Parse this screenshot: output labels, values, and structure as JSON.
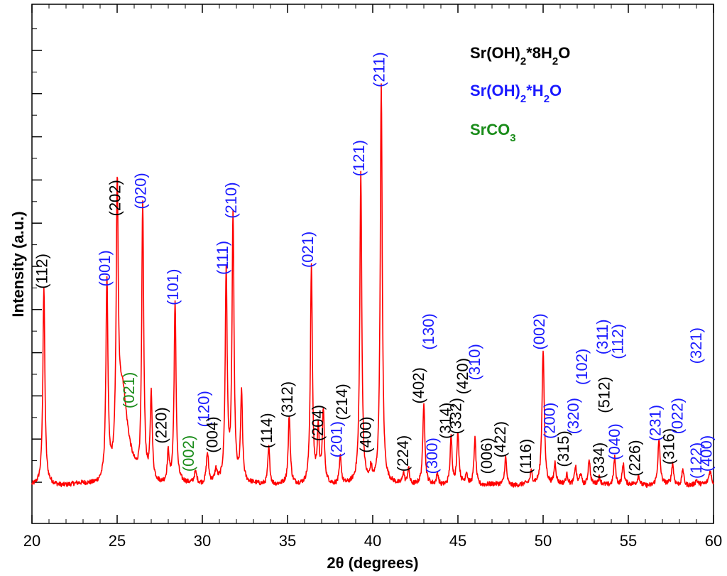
{
  "chart_data": {
    "type": "line",
    "xlabel": "2θ (degrees)",
    "ylabel": "Intensity (a.u.)",
    "xlim": [
      20,
      60
    ],
    "ylim": [
      0,
      1000
    ],
    "x_ticks": [
      20,
      25,
      30,
      35,
      40,
      45,
      50,
      55,
      60
    ],
    "line_color": "#ff0000",
    "phase_colors": {
      "a": "#000000",
      "b": "#1a1aff",
      "c": "#1a8c1a"
    },
    "legend": [
      {
        "phase": "a",
        "parts": [
          [
            "Sr(OH)",
            ""
          ],
          [
            "2",
            "sub"
          ],
          [
            "*8H",
            ""
          ],
          [
            "2",
            "sub"
          ],
          [
            "O",
            ""
          ]
        ]
      },
      {
        "phase": "b",
        "parts": [
          [
            "Sr(OH)",
            ""
          ],
          [
            "2",
            "sub"
          ],
          [
            "*H",
            ""
          ],
          [
            "2",
            "sub"
          ],
          [
            "O",
            ""
          ]
        ]
      },
      {
        "phase": "c",
        "parts": [
          [
            "SrCO",
            ""
          ],
          [
            "3",
            "sub"
          ]
        ]
      }
    ],
    "peaks": [
      [
        20.7,
        420,
        0.07
      ],
      [
        24.4,
        425,
        0.07
      ],
      [
        25.0,
        575,
        0.07
      ],
      [
        25.3,
        140,
        0.3
      ],
      [
        26.5,
        590,
        0.07
      ],
      [
        27.0,
        185,
        0.07
      ],
      [
        28.0,
        65,
        0.07
      ],
      [
        28.4,
        385,
        0.07
      ],
      [
        29.6,
        25,
        0.1
      ],
      [
        30.3,
        65,
        0.08
      ],
      [
        30.8,
        25,
        0.08
      ],
      [
        31.4,
        450,
        0.07
      ],
      [
        31.8,
        570,
        0.07
      ],
      [
        32.3,
        190,
        0.07
      ],
      [
        33.9,
        80,
        0.07
      ],
      [
        35.1,
        145,
        0.07
      ],
      [
        36.4,
        465,
        0.07
      ],
      [
        36.8,
        110,
        0.07
      ],
      [
        37.1,
        155,
        0.07
      ],
      [
        38.1,
        60,
        0.07
      ],
      [
        39.3,
        660,
        0.07
      ],
      [
        39.9,
        30,
        0.07
      ],
      [
        40.5,
        850,
        0.07
      ],
      [
        41.8,
        25,
        0.07
      ],
      [
        42.1,
        35,
        0.07
      ],
      [
        43.0,
        175,
        0.07
      ],
      [
        43.8,
        25,
        0.07
      ],
      [
        44.6,
        100,
        0.07
      ],
      [
        45.0,
        110,
        0.07
      ],
      [
        45.5,
        25,
        0.07
      ],
      [
        46.0,
        100,
        0.07
      ],
      [
        47.8,
        60,
        0.07
      ],
      [
        49.3,
        25,
        0.07
      ],
      [
        50.0,
        290,
        0.08
      ],
      [
        50.7,
        45,
        0.07
      ],
      [
        51.4,
        20,
        0.07
      ],
      [
        51.9,
        40,
        0.07
      ],
      [
        52.2,
        25,
        0.07
      ],
      [
        52.7,
        55,
        0.07
      ],
      [
        53.3,
        15,
        0.07
      ],
      [
        54.2,
        60,
        0.07
      ],
      [
        54.7,
        45,
        0.07
      ],
      [
        55.6,
        20,
        0.07
      ],
      [
        56.8,
        95,
        0.08
      ],
      [
        57.6,
        45,
        0.07
      ],
      [
        58.2,
        35,
        0.07
      ],
      [
        59.0,
        10,
        0.07
      ],
      [
        59.8,
        30,
        0.1
      ]
    ],
    "labels": [
      {
        "text": "(112)",
        "x": 20.6,
        "y": 420,
        "phase": "a"
      },
      {
        "text": "(001)",
        "x": 24.3,
        "y": 425,
        "phase": "b"
      },
      {
        "text": "(202)",
        "x": 24.9,
        "y": 575,
        "phase": "a"
      },
      {
        "text": "(021)",
        "x": 25.7,
        "y": 165,
        "phase": "c"
      },
      {
        "text": "(020)",
        "x": 26.4,
        "y": 590,
        "phase": "b"
      },
      {
        "text": "(220)",
        "x": 27.6,
        "y": 90,
        "phase": "a"
      },
      {
        "text": "(101)",
        "x": 28.3,
        "y": 385,
        "phase": "b"
      },
      {
        "text": "(002)",
        "x": 29.2,
        "y": 30,
        "phase": "c"
      },
      {
        "text": "(120)",
        "x": 30.1,
        "y": 125,
        "phase": "b"
      },
      {
        "text": "(004)",
        "x": 30.6,
        "y": 70,
        "phase": "a"
      },
      {
        "text": "(111)",
        "x": 31.2,
        "y": 450,
        "phase": "b"
      },
      {
        "text": "(210)",
        "x": 31.7,
        "y": 570,
        "phase": "b"
      },
      {
        "text": "(114)",
        "x": 33.8,
        "y": 80,
        "phase": "a"
      },
      {
        "text": "(312)",
        "x": 35.0,
        "y": 145,
        "phase": "a"
      },
      {
        "text": "(021)",
        "x": 36.2,
        "y": 465,
        "phase": "b"
      },
      {
        "text": "(204)",
        "x": 36.8,
        "y": 95,
        "phase": "a"
      },
      {
        "text": "(201)",
        "x": 37.9,
        "y": 60,
        "phase": "b"
      },
      {
        "text": "(214)",
        "x": 38.2,
        "y": 140,
        "phase": "a"
      },
      {
        "text": "(121)",
        "x": 39.2,
        "y": 660,
        "phase": "b"
      },
      {
        "text": "(400)",
        "x": 39.6,
        "y": 70,
        "phase": "a"
      },
      {
        "text": "(211)",
        "x": 40.4,
        "y": 850,
        "phase": "b"
      },
      {
        "text": "(224)",
        "x": 41.8,
        "y": 30,
        "phase": "a"
      },
      {
        "text": "(402)",
        "x": 42.7,
        "y": 175,
        "phase": "a"
      },
      {
        "text": "(300)",
        "x": 43.5,
        "y": 25,
        "phase": "b"
      },
      {
        "text": "(130)",
        "x": 43.3,
        "y": 290,
        "phase": "b"
      },
      {
        "text": "(314)",
        "x": 44.3,
        "y": 100,
        "phase": "a"
      },
      {
        "text": "(332)",
        "x": 44.9,
        "y": 110,
        "phase": "a"
      },
      {
        "text": "(420)",
        "x": 45.3,
        "y": 195,
        "phase": "a"
      },
      {
        "text": "(310)",
        "x": 46.0,
        "y": 225,
        "phase": "b"
      },
      {
        "text": "(006)",
        "x": 46.7,
        "y": 25,
        "phase": "a"
      },
      {
        "text": "(422)",
        "x": 47.5,
        "y": 60,
        "phase": "a"
      },
      {
        "text": "(116)",
        "x": 49.0,
        "y": 25,
        "phase": "a"
      },
      {
        "text": "(002)",
        "x": 49.8,
        "y": 290,
        "phase": "b"
      },
      {
        "text": "(200)",
        "x": 50.4,
        "y": 100,
        "phase": "b"
      },
      {
        "text": "(315)",
        "x": 51.2,
        "y": 40,
        "phase": "a"
      },
      {
        "text": "(320)",
        "x": 51.8,
        "y": 110,
        "phase": "b"
      },
      {
        "text": "(102)",
        "x": 52.3,
        "y": 215,
        "phase": "b"
      },
      {
        "text": "(334)",
        "x": 53.3,
        "y": 15,
        "phase": "a"
      },
      {
        "text": "(512)",
        "x": 53.6,
        "y": 155,
        "phase": "a"
      },
      {
        "text": "(311)",
        "x": 53.5,
        "y": 280,
        "phase": "b"
      },
      {
        "text": "(040)",
        "x": 54.2,
        "y": 55,
        "phase": "b"
      },
      {
        "text": "(112)",
        "x": 54.4,
        "y": 270,
        "phase": "b"
      },
      {
        "text": "(226)",
        "x": 55.4,
        "y": 20,
        "phase": "a"
      },
      {
        "text": "(231)",
        "x": 56.6,
        "y": 95,
        "phase": "b"
      },
      {
        "text": "(316)",
        "x": 57.4,
        "y": 45,
        "phase": "a"
      },
      {
        "text": "(022)",
        "x": 57.9,
        "y": 110,
        "phase": "b"
      },
      {
        "text": "(122)",
        "x": 59.0,
        "y": 15,
        "phase": "b"
      },
      {
        "text": "(321)",
        "x": 59.0,
        "y": 260,
        "phase": "b"
      },
      {
        "text": "(400)",
        "x": 59.6,
        "y": 30,
        "phase": "b"
      }
    ]
  }
}
